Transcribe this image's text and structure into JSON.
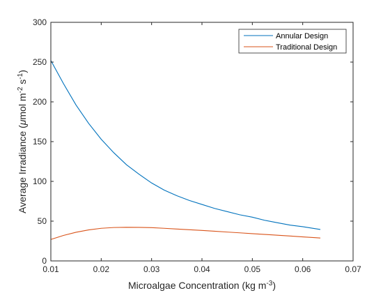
{
  "chart_data": {
    "type": "line",
    "xlabel": {
      "base": "Microalgae Concentration (kg m",
      "sup": "-3",
      "tail": ")"
    },
    "ylabel": {
      "base": "Average Irradiance (",
      "mu": "μ",
      "mid": "mol m",
      "sup1": "-2",
      "mid2": " s",
      "sup2": "-1",
      "tail": ")"
    },
    "xlim": [
      0.01,
      0.07
    ],
    "ylim": [
      0,
      300
    ],
    "xticks": [
      0.01,
      0.02,
      0.03,
      0.04,
      0.05,
      0.06,
      0.07
    ],
    "yticks": [
      0,
      50,
      100,
      150,
      200,
      250,
      300
    ],
    "xtick_labels": [
      "0.01",
      "0.02",
      "0.03",
      "0.04",
      "0.05",
      "0.06",
      "0.07"
    ],
    "ytick_labels": [
      "0",
      "50",
      "100",
      "150",
      "200",
      "250",
      "300"
    ],
    "grid": false,
    "legend_position": "top-right",
    "series": [
      {
        "name": "Annular Design",
        "color": "#0072BD",
        "x": [
          0.01,
          0.0125,
          0.015,
          0.0175,
          0.02,
          0.0225,
          0.025,
          0.0275,
          0.03,
          0.0325,
          0.035,
          0.0375,
          0.04,
          0.0425,
          0.045,
          0.0475,
          0.05,
          0.0525,
          0.055,
          0.0575,
          0.06,
          0.0625,
          0.0635
        ],
        "y": [
          252,
          223,
          196,
          173,
          153,
          136,
          121,
          109,
          98,
          89,
          82,
          76,
          71,
          66,
          62,
          58,
          55,
          51,
          48,
          45,
          43,
          40.5,
          39.5
        ]
      },
      {
        "name": "Traditional Design",
        "color": "#D95319",
        "x": [
          0.01,
          0.0125,
          0.015,
          0.0175,
          0.02,
          0.0225,
          0.025,
          0.0275,
          0.03,
          0.0325,
          0.035,
          0.0375,
          0.04,
          0.0425,
          0.045,
          0.0475,
          0.05,
          0.0525,
          0.055,
          0.0575,
          0.06,
          0.0625,
          0.0635
        ],
        "y": [
          27,
          32,
          36,
          39,
          41,
          42,
          42.3,
          42.2,
          41.8,
          41,
          40.1,
          39.2,
          38.3,
          37.3,
          36.3,
          35.3,
          34.3,
          33.3,
          32.3,
          31.3,
          30.2,
          29.2,
          28.8
        ]
      }
    ]
  }
}
